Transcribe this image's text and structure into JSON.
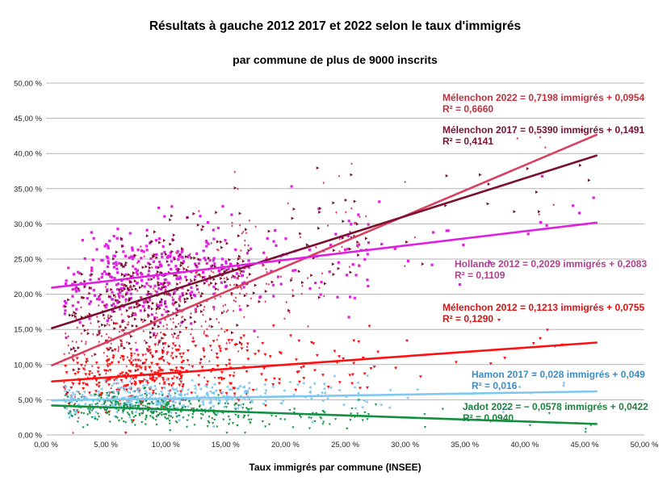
{
  "chart_data": {
    "type": "scatter",
    "title": "Résultats à gauche 2012 2017 et 2022 selon le taux d'immigrés",
    "subtitle": "par commune de plus de 9000 inscrits",
    "xlabel": "Taux immigrés par commune (INSEE)",
    "ylabel": "",
    "xlim": [
      0,
      0.5
    ],
    "ylim": [
      0,
      0.5
    ],
    "x_ticks": [
      0,
      0.05,
      0.1,
      0.15,
      0.2,
      0.25,
      0.3,
      0.35,
      0.4,
      0.45,
      0.5
    ],
    "y_ticks": [
      0,
      0.05,
      0.1,
      0.15,
      0.2,
      0.25,
      0.3,
      0.35,
      0.4,
      0.45,
      0.5
    ],
    "x_tick_labels": [
      "0,00 %",
      "5,00 %",
      "10,00 %",
      "15,00 %",
      "20,00 %",
      "25,00 %",
      "30,00 %",
      "35,00 %",
      "40,00 %",
      "45,00 %",
      "50,00 %"
    ],
    "y_tick_labels": [
      "0,00 %",
      "5,00 %",
      "10,00 %",
      "15,00 %",
      "20,00 %",
      "25,00 %",
      "30,00 %",
      "35,00 %",
      "40,00 %",
      "45,00 %",
      "50,00 %"
    ],
    "grid": "horizontal",
    "series": [
      {
        "key": "melenchon2022",
        "color": "#d94060",
        "marker": "diamond-small",
        "trend": {
          "slope": 0.7198,
          "intercept": 0.0954,
          "x_range": [
            0.005,
            0.46
          ]
        },
        "equation_label": "Mélenchon 2022 = 0,7198 immigrés + 0,0954",
        "r2_label": "R² = 0,6660",
        "label_color": "#c0303a",
        "cloud": {
          "count": 380,
          "sd": 0.05
        }
      },
      {
        "key": "melenchon2017",
        "color": "#7a1030",
        "marker": "triangle-right",
        "trend": {
          "slope": 0.539,
          "intercept": 0.1491,
          "x_range": [
            0.005,
            0.46
          ]
        },
        "equation_label": "Mélenchon 2017 = 0,5390 immigrés + 0,1491",
        "r2_label": "R² = 0,4141",
        "label_color": "#7a1030",
        "cloud": {
          "count": 380,
          "sd": 0.045
        }
      },
      {
        "key": "hollande2012",
        "color": "#e020e0",
        "marker": "square",
        "trend": {
          "slope": 0.2029,
          "intercept": 0.2083,
          "x_range": [
            0.005,
            0.46
          ]
        },
        "equation_label": "Hollande 2012 = 0,2029 immigrés + 0,2083",
        "r2_label": "R² = 0,1109",
        "label_color": "#b04090",
        "cloud": {
          "count": 420,
          "sd": 0.035
        }
      },
      {
        "key": "melenchon2012",
        "color": "#ff1010",
        "marker": "triangle-down",
        "trend": {
          "slope": 0.1213,
          "intercept": 0.0755,
          "x_range": [
            0.005,
            0.46
          ]
        },
        "equation_label": "Mélenchon 2012 = 0,1213 immigrés + 0,0755",
        "r2_label": "R² = 0,1290",
        "label_color": "#e01010",
        "cloud": {
          "count": 380,
          "sd": 0.025
        }
      },
      {
        "key": "hamon2017",
        "color": "#7ec8f0",
        "marker": "triangle-left",
        "trend": {
          "slope": 0.028,
          "intercept": 0.049,
          "x_range": [
            0.005,
            0.46
          ]
        },
        "equation_label": "Hamon 2017 = 0,028 immigrés + 0,049",
        "r2_label": "R² = 0,016",
        "label_color": "#3a8ec8",
        "cloud": {
          "count": 380,
          "sd": 0.012
        }
      },
      {
        "key": "jadot2022",
        "color": "#109040",
        "marker": "triangle-down-small",
        "trend": {
          "slope": -0.0578,
          "intercept": 0.0422,
          "x_range": [
            0.005,
            0.46
          ]
        },
        "equation_label": "Jadot 2022 = − 0,0578 immigrés + 0,0422",
        "r2_label": "R² = 0,0940",
        "label_color": "#208040",
        "cloud": {
          "count": 380,
          "sd": 0.011
        }
      }
    ]
  }
}
